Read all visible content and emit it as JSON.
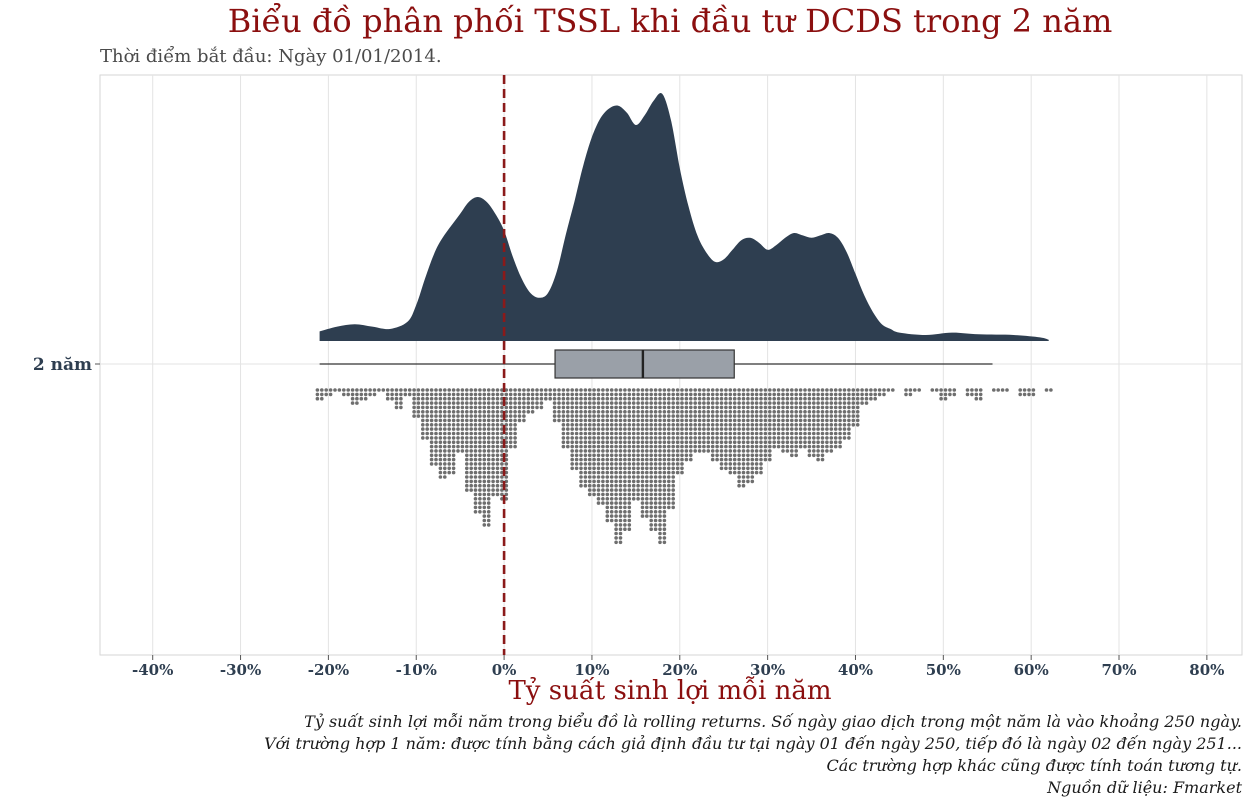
{
  "title": "Biểu đồ phân phối TSSL khi đầu tư DCDS trong 2 năm",
  "subtitle": "Thời điểm bắt đầu: Ngày 01/01/2014.",
  "caption": [
    "Tỷ suất sinh lợi mỗi năm trong biểu đồ là rolling returns. Số ngày giao dịch trong một năm là vào khoảng 250 ngày.",
    "Với trường hợp 1 năm: được tính bằng cách giả định đầu tư tại ngày 01 đến ngày 250, tiếp đó là ngày 02 đến ngày 251...",
    "Các trường hợp khác cũng được tính toán tương tự.",
    "Nguồn dữ liệu: Fmarket"
  ],
  "colors": {
    "title": "#8b0f0f",
    "density_fill": "#2e3e50",
    "box_fill": "#9aa0a8",
    "dots": "#6e6e6e",
    "zero_line": "#8b1a1a",
    "grid": "#e3e3e3"
  },
  "chart_data": {
    "type": "raincloud",
    "title": "Biểu đồ phân phối TSSL khi đầu tư DCDS trong 2 năm",
    "xlabel": "Tỷ suất sinh lợi mỗi năm",
    "ylabel": "",
    "category": "2 năm",
    "xlim": [
      -46,
      84
    ],
    "x_ticks": [
      -40,
      -30,
      -20,
      -10,
      0,
      10,
      20,
      30,
      40,
      50,
      60,
      70,
      80
    ],
    "x_tick_labels": [
      "-40%",
      "-30%",
      "-20%",
      "-10%",
      "0%",
      "10%",
      "20%",
      "30%",
      "40%",
      "50%",
      "60%",
      "70%",
      "80%"
    ],
    "reference_line_x": 0,
    "boxplot": {
      "min": -21,
      "q1": 5.8,
      "median": 15.8,
      "q3": 26.2,
      "max": 55.6
    },
    "density": [
      [
        -21,
        0.04
      ],
      [
        -19,
        0.06
      ],
      [
        -17,
        0.07
      ],
      [
        -15,
        0.06
      ],
      [
        -13,
        0.05
      ],
      [
        -11,
        0.08
      ],
      [
        -10,
        0.15
      ],
      [
        -9,
        0.26
      ],
      [
        -8,
        0.36
      ],
      [
        -7,
        0.43
      ],
      [
        -5,
        0.53
      ],
      [
        -4,
        0.58
      ],
      [
        -3,
        0.6
      ],
      [
        -2,
        0.58
      ],
      [
        -1,
        0.53
      ],
      [
        0,
        0.46
      ],
      [
        1,
        0.35
      ],
      [
        2,
        0.26
      ],
      [
        3,
        0.2
      ],
      [
        4,
        0.18
      ],
      [
        5,
        0.2
      ],
      [
        6,
        0.29
      ],
      [
        7,
        0.44
      ],
      [
        8,
        0.58
      ],
      [
        9,
        0.73
      ],
      [
        10,
        0.85
      ],
      [
        11,
        0.93
      ],
      [
        12,
        0.97
      ],
      [
        13,
        0.98
      ],
      [
        14,
        0.95
      ],
      [
        15,
        0.9
      ],
      [
        16,
        0.94
      ],
      [
        17,
        1.0
      ],
      [
        18,
        1.03
      ],
      [
        19,
        0.92
      ],
      [
        20,
        0.72
      ],
      [
        21,
        0.56
      ],
      [
        22,
        0.44
      ],
      [
        23,
        0.37
      ],
      [
        24,
        0.33
      ],
      [
        25,
        0.34
      ],
      [
        26,
        0.38
      ],
      [
        27,
        0.42
      ],
      [
        28,
        0.43
      ],
      [
        29,
        0.41
      ],
      [
        30,
        0.38
      ],
      [
        31,
        0.4
      ],
      [
        32,
        0.43
      ],
      [
        33,
        0.45
      ],
      [
        34,
        0.44
      ],
      [
        35,
        0.43
      ],
      [
        36,
        0.44
      ],
      [
        37,
        0.45
      ],
      [
        38,
        0.43
      ],
      [
        39,
        0.37
      ],
      [
        40,
        0.28
      ],
      [
        41,
        0.19
      ],
      [
        42,
        0.12
      ],
      [
        43,
        0.07
      ],
      [
        44,
        0.05
      ],
      [
        45,
        0.035
      ],
      [
        48,
        0.025
      ],
      [
        51,
        0.035
      ],
      [
        54,
        0.028
      ],
      [
        58,
        0.025
      ],
      [
        61,
        0.015
      ],
      [
        62,
        0.005
      ]
    ],
    "dotplot_counts": [
      [
        -21,
        3
      ],
      [
        -20,
        2
      ],
      [
        -19,
        1
      ],
      [
        -18,
        2
      ],
      [
        -17,
        4
      ],
      [
        -16,
        3
      ],
      [
        -15,
        2
      ],
      [
        -14,
        1
      ],
      [
        -13,
        3
      ],
      [
        -12,
        5
      ],
      [
        -11,
        2
      ],
      [
        -10,
        7
      ],
      [
        -9,
        12
      ],
      [
        -8,
        18
      ],
      [
        -7,
        21
      ],
      [
        -6,
        20
      ],
      [
        -5,
        15
      ],
      [
        -4,
        24
      ],
      [
        -3,
        29
      ],
      [
        -2,
        32
      ],
      [
        -1,
        25
      ],
      [
        0,
        26
      ],
      [
        1,
        14
      ],
      [
        2,
        8
      ],
      [
        3,
        6
      ],
      [
        4,
        5
      ],
      [
        5,
        3
      ],
      [
        6,
        8
      ],
      [
        7,
        14
      ],
      [
        8,
        19
      ],
      [
        9,
        23
      ],
      [
        10,
        25
      ],
      [
        11,
        27
      ],
      [
        12,
        31
      ],
      [
        13,
        36
      ],
      [
        14,
        33
      ],
      [
        15,
        26
      ],
      [
        16,
        30
      ],
      [
        17,
        33
      ],
      [
        18,
        36
      ],
      [
        19,
        28
      ],
      [
        20,
        20
      ],
      [
        21,
        17
      ],
      [
        22,
        15
      ],
      [
        23,
        15
      ],
      [
        24,
        17
      ],
      [
        25,
        19
      ],
      [
        26,
        20
      ],
      [
        27,
        23
      ],
      [
        28,
        22
      ],
      [
        29,
        20
      ],
      [
        30,
        17
      ],
      [
        31,
        14
      ],
      [
        32,
        15
      ],
      [
        33,
        16
      ],
      [
        34,
        14
      ],
      [
        35,
        16
      ],
      [
        36,
        17
      ],
      [
        37,
        15
      ],
      [
        38,
        14
      ],
      [
        39,
        12
      ],
      [
        40,
        9
      ],
      [
        41,
        4
      ],
      [
        42,
        3
      ],
      [
        43,
        2
      ],
      [
        44,
        1
      ],
      [
        46,
        2
      ],
      [
        47,
        1
      ],
      [
        49,
        1
      ],
      [
        50,
        3
      ],
      [
        51,
        2
      ],
      [
        53,
        2
      ],
      [
        54,
        3
      ],
      [
        56,
        1
      ],
      [
        57,
        1
      ],
      [
        59,
        2
      ],
      [
        60,
        2
      ],
      [
        62,
        1
      ]
    ]
  }
}
